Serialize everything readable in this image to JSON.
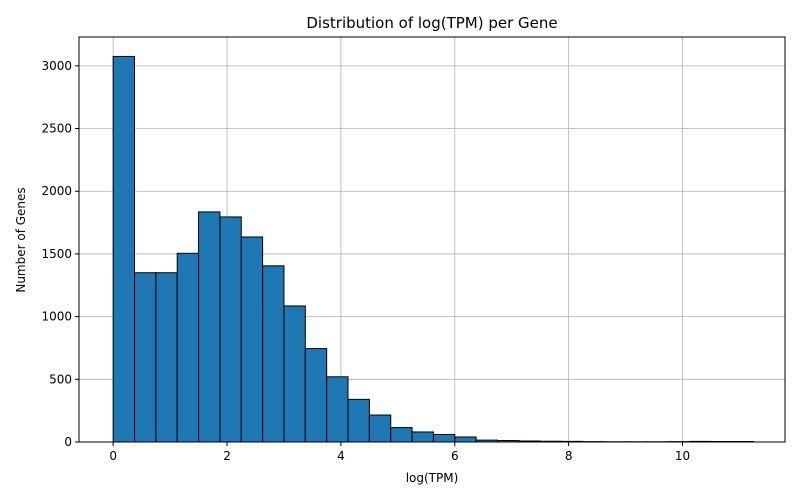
{
  "chart_data": {
    "type": "bar",
    "title": "Distribution of log(TPM) per Gene",
    "xlabel": "log(TPM)",
    "ylabel": "Number of Genes",
    "bin_edges": [
      0.0,
      0.375,
      0.75,
      1.125,
      1.5,
      1.875,
      2.25,
      2.625,
      3.0,
      3.375,
      3.75,
      4.125,
      4.5,
      4.875,
      5.25,
      5.625,
      6.0,
      6.375,
      6.75,
      7.125,
      7.5,
      7.875,
      8.25,
      8.625,
      9.0,
      9.375,
      9.75,
      10.125,
      10.5,
      10.875,
      11.25
    ],
    "values": [
      3075,
      1350,
      1350,
      1505,
      1835,
      1795,
      1635,
      1405,
      1085,
      745,
      520,
      340,
      215,
      115,
      80,
      60,
      40,
      15,
      12,
      8,
      6,
      5,
      3,
      2,
      2,
      2,
      3,
      5,
      4,
      4
    ],
    "xlim": [
      -0.6,
      11.8
    ],
    "ylim": [
      0,
      3230
    ],
    "xticks": [
      0,
      2,
      4,
      6,
      8,
      10
    ],
    "yticks": [
      0,
      500,
      1000,
      1500,
      2000,
      2500,
      3000
    ],
    "grid": true,
    "bar_color": "#1f77b4",
    "edge_color": "#000000",
    "grid_color": "#b0b0b0"
  }
}
